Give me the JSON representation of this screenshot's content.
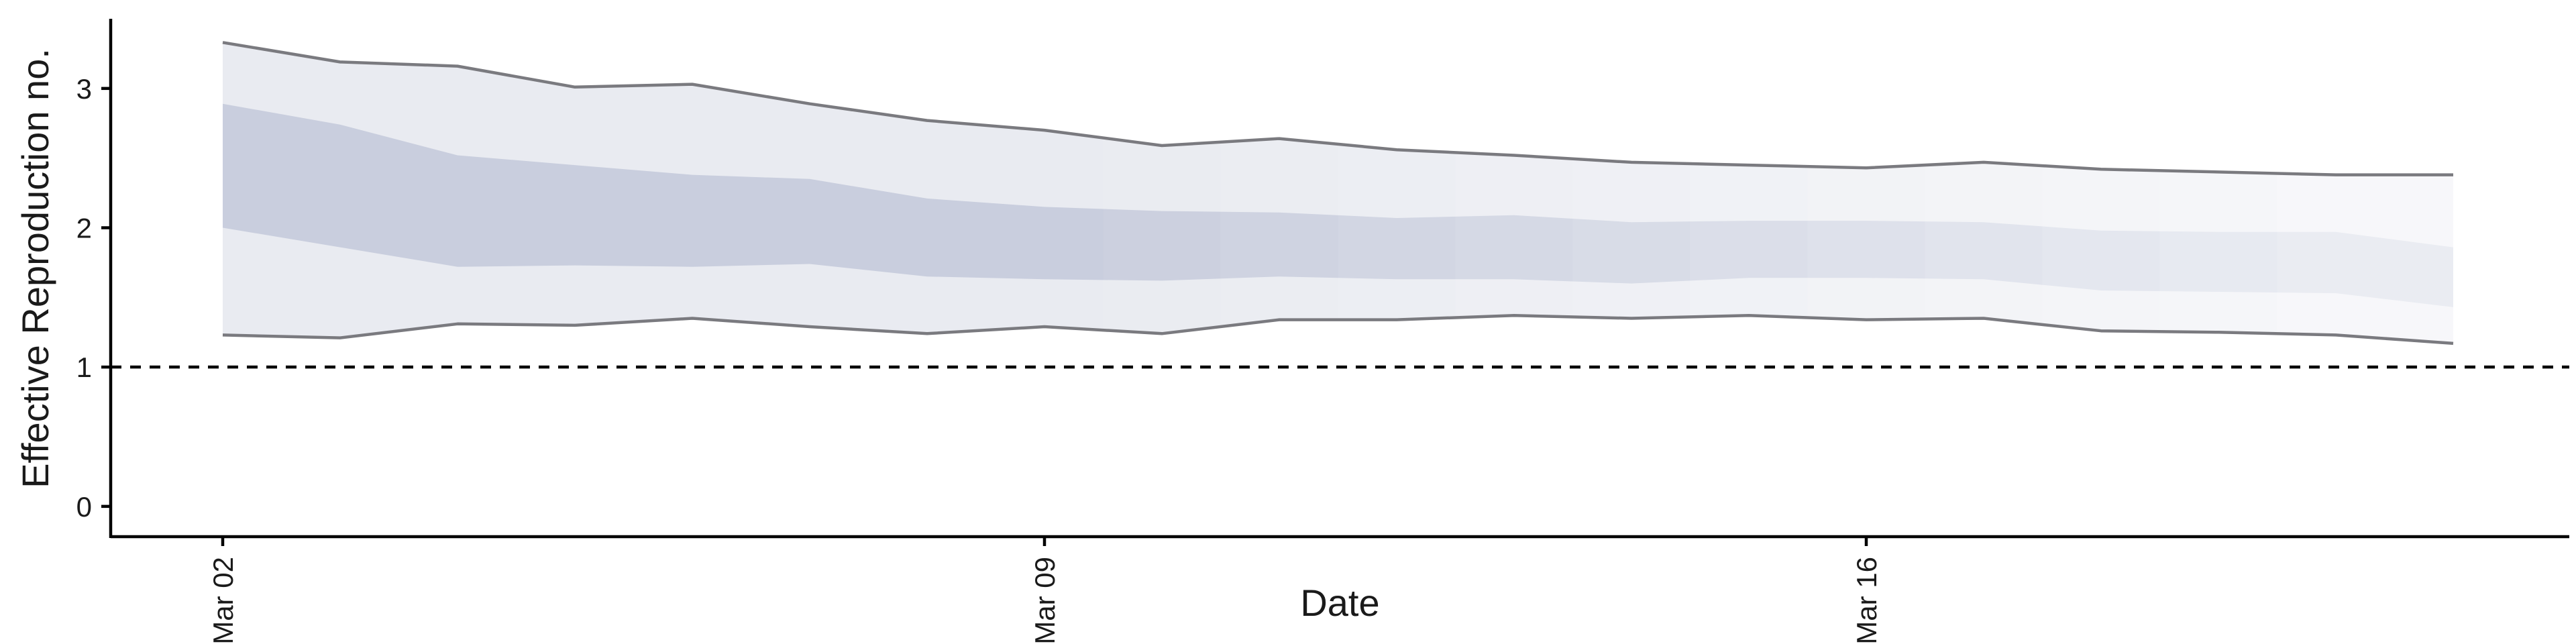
{
  "chart_data": {
    "type": "area",
    "xlabel": "Date",
    "ylabel": "Effective Reproduction no.",
    "ylim": [
      -0.15,
      3.5
    ],
    "y_ticks": [
      0,
      1,
      2,
      3
    ],
    "x_ticks": [
      {
        "value": "2020-03-02",
        "label": "Mar 02"
      },
      {
        "value": "2020-03-09",
        "label": "Mar 09"
      },
      {
        "value": "2020-03-16",
        "label": "Mar 16"
      }
    ],
    "reference_line": {
      "y": 1,
      "style": "dashed"
    },
    "x": [
      "2020-03-02",
      "2020-03-03",
      "2020-03-04",
      "2020-03-05",
      "2020-03-06",
      "2020-03-07",
      "2020-03-08",
      "2020-03-09",
      "2020-03-10",
      "2020-03-11",
      "2020-03-12",
      "2020-03-13",
      "2020-03-14",
      "2020-03-15",
      "2020-03-16",
      "2020-03-17",
      "2020-03-18",
      "2020-03-19",
      "2020-03-20",
      "2020-03-21"
    ],
    "outer_band": {
      "lower": [
        1.23,
        1.21,
        1.31,
        1.3,
        1.35,
        1.29,
        1.24,
        1.29,
        1.24,
        1.34,
        1.34,
        1.37,
        1.35,
        1.37,
        1.34,
        1.35,
        1.26,
        1.25,
        1.23,
        1.17
      ],
      "upper": [
        3.33,
        3.19,
        3.16,
        3.01,
        3.03,
        2.89,
        2.77,
        2.7,
        2.59,
        2.64,
        2.56,
        2.52,
        2.47,
        2.45,
        2.43,
        2.47,
        2.42,
        2.4,
        2.38,
        2.38
      ]
    },
    "inner_band": {
      "lower": [
        2.0,
        1.86,
        1.72,
        1.73,
        1.72,
        1.74,
        1.65,
        1.63,
        1.62,
        1.65,
        1.63,
        1.63,
        1.6,
        1.64,
        1.64,
        1.63,
        1.55,
        1.54,
        1.53,
        1.43
      ],
      "upper": [
        2.89,
        2.74,
        2.52,
        2.45,
        2.38,
        2.35,
        2.21,
        2.15,
        2.12,
        2.11,
        2.07,
        2.09,
        2.04,
        2.05,
        2.05,
        2.04,
        1.98,
        1.97,
        1.97,
        1.86
      ]
    },
    "colors": {
      "outer_fill": "#e9ebf1",
      "inner_fill": "#c9cede",
      "bound_line": "#7a7a7f",
      "axis": "#000000"
    }
  }
}
